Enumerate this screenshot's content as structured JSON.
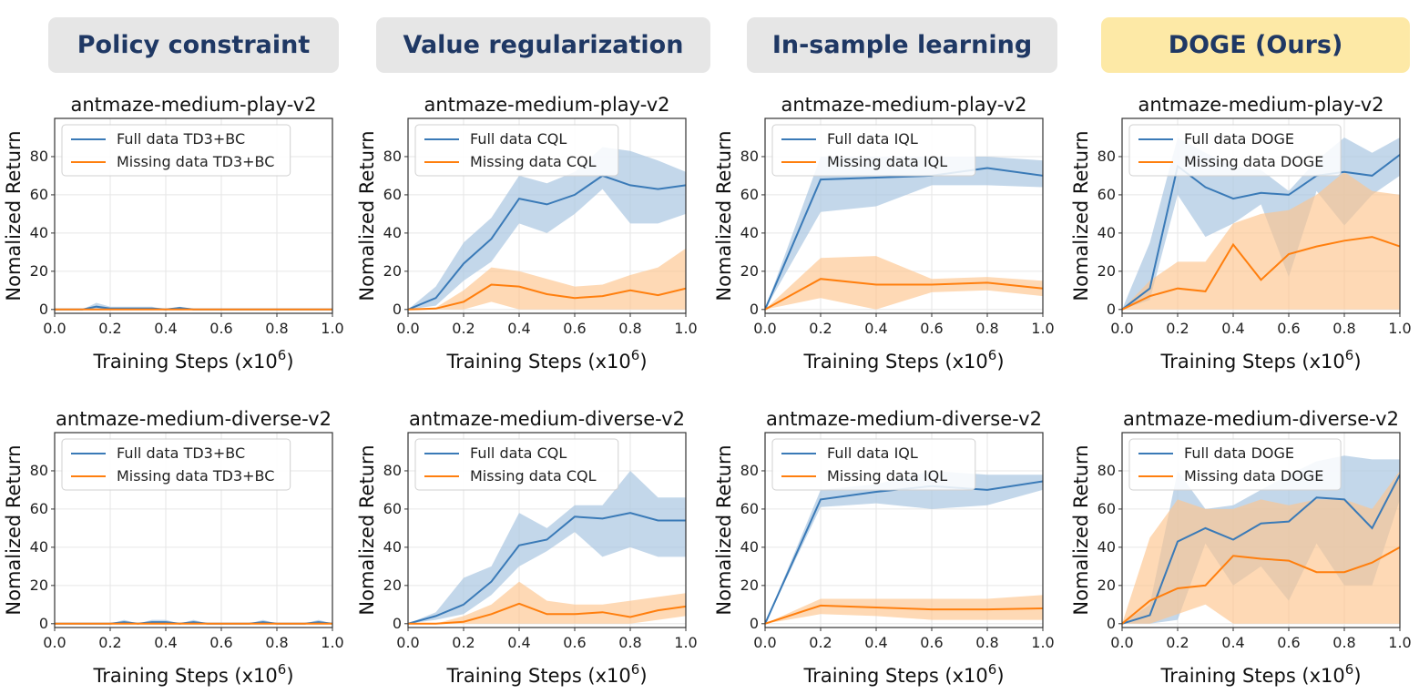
{
  "headers": [
    {
      "label": "Policy constraint",
      "bg": "#e6e6e6"
    },
    {
      "label": "Value regularization",
      "bg": "#e6e6e6"
    },
    {
      "label": "In-sample learning",
      "bg": "#e6e6e6"
    },
    {
      "label": "DOGE (Ours)",
      "bg": "#fde9a6"
    }
  ],
  "colors": {
    "full": "#3a7ab7",
    "full_band": "#a9c6e1",
    "missing": "#ff7f0e",
    "missing_band": "#fdc48e"
  },
  "chart_data": [
    {
      "type": "line",
      "title": "antmaze-medium-play-v2",
      "xlabel": "Training Steps (x10^6)",
      "ylabel": "Nomalized Return",
      "xlim": [
        0,
        1.0
      ],
      "ylim": [
        -2,
        100
      ],
      "xticks": [
        "0.0",
        "0.2",
        "0.4",
        "0.6",
        "0.8",
        "1.0"
      ],
      "yticks": [
        "0",
        "20",
        "40",
        "60",
        "80"
      ],
      "grid": true,
      "legend": "upper-left",
      "series": [
        {
          "name": "Full data TD3+BC",
          "x": [
            0,
            0.1,
            0.15,
            0.2,
            0.3,
            0.35,
            0.4,
            0.45,
            0.5,
            0.6,
            0.7,
            0.8,
            0.9,
            1.0
          ],
          "y": [
            0,
            0,
            1.5,
            0.5,
            0.5,
            0.5,
            0,
            0.8,
            0,
            0,
            0,
            0,
            0,
            0
          ],
          "lower": [
            0,
            0,
            0,
            0,
            0,
            0,
            0,
            0,
            0,
            0,
            0,
            0,
            0,
            0
          ],
          "upper": [
            0,
            0,
            3.5,
            1.5,
            1.5,
            1.5,
            0,
            1.5,
            0,
            0,
            0,
            0,
            0,
            0
          ]
        },
        {
          "name": "Missing data TD3+BC",
          "x": [
            0,
            0.1,
            0.2,
            0.3,
            0.4,
            0.5,
            0.6,
            0.7,
            0.8,
            0.9,
            1.0
          ],
          "y": [
            0,
            0,
            0,
            0,
            0,
            0,
            0,
            0,
            0,
            0,
            0
          ],
          "lower": [
            0,
            0,
            0,
            0,
            0,
            0,
            0,
            0,
            0,
            0,
            0
          ],
          "upper": [
            0,
            0,
            0,
            0,
            0,
            0,
            0,
            0,
            0,
            0,
            0
          ]
        }
      ]
    },
    {
      "type": "line",
      "title": "antmaze-medium-play-v2",
      "xlabel": "Training Steps (x10^6)",
      "ylabel": "Nomalized Return",
      "xlim": [
        0,
        1.0
      ],
      "ylim": [
        -2,
        100
      ],
      "xticks": [
        "0.0",
        "0.2",
        "0.4",
        "0.6",
        "0.8",
        "1.0"
      ],
      "yticks": [
        "0",
        "20",
        "40",
        "60",
        "80"
      ],
      "grid": true,
      "legend": "upper-left",
      "series": [
        {
          "name": "Full data CQL",
          "x": [
            0,
            0.1,
            0.2,
            0.3,
            0.4,
            0.5,
            0.6,
            0.7,
            0.8,
            0.9,
            1.0
          ],
          "y": [
            0,
            6,
            24,
            37,
            58,
            55,
            60,
            70,
            65,
            63,
            65
          ],
          "lower": [
            0,
            2,
            15,
            25,
            45,
            40,
            50,
            63,
            45,
            45,
            50
          ],
          "upper": [
            0,
            12,
            35,
            48,
            70,
            66,
            72,
            85,
            83,
            78,
            72
          ]
        },
        {
          "name": "Missing data CQL",
          "x": [
            0,
            0.1,
            0.2,
            0.3,
            0.4,
            0.5,
            0.6,
            0.7,
            0.8,
            0.9,
            1.0
          ],
          "y": [
            0,
            0.5,
            4,
            13,
            12,
            8,
            6,
            7,
            10,
            7.5,
            11
          ],
          "lower": [
            0,
            0,
            0,
            4,
            0,
            0,
            0,
            0,
            0,
            0,
            0
          ],
          "upper": [
            0,
            1,
            10,
            22,
            20,
            16,
            12,
            13,
            18,
            22,
            32
          ]
        }
      ]
    },
    {
      "type": "line",
      "title": "antmaze-medium-play-v2",
      "xlabel": "Training Steps (x10^6)",
      "ylabel": "Nomalized Return",
      "xlim": [
        0,
        1.0
      ],
      "ylim": [
        -2,
        100
      ],
      "xticks": [
        "0.0",
        "0.2",
        "0.4",
        "0.6",
        "0.8",
        "1.0"
      ],
      "yticks": [
        "0",
        "20",
        "40",
        "60",
        "80"
      ],
      "grid": true,
      "legend": "upper-left",
      "series": [
        {
          "name": "Full data IQL",
          "x": [
            0,
            0.2,
            0.4,
            0.6,
            0.8,
            1.0
          ],
          "y": [
            0,
            68,
            69,
            70,
            74,
            70
          ],
          "lower": [
            0,
            51,
            54,
            65,
            65,
            64
          ],
          "upper": [
            0,
            80,
            80,
            80,
            80,
            78
          ]
        },
        {
          "name": "Missing data IQL",
          "x": [
            0,
            0.2,
            0.4,
            0.6,
            0.8,
            1.0
          ],
          "y": [
            0,
            16,
            13,
            13,
            14,
            11
          ],
          "lower": [
            0,
            6,
            0,
            9,
            10,
            7
          ],
          "upper": [
            0,
            27,
            28,
            16,
            17,
            15
          ]
        }
      ]
    },
    {
      "type": "line",
      "title": "antmaze-medium-play-v2",
      "xlabel": "Training Steps (x10^6)",
      "ylabel": "Nomalized Return",
      "xlim": [
        0,
        1.0
      ],
      "ylim": [
        -2,
        100
      ],
      "xticks": [
        "0.0",
        "0.2",
        "0.4",
        "0.6",
        "0.8",
        "1.0"
      ],
      "yticks": [
        "0",
        "20",
        "40",
        "60",
        "80"
      ],
      "grid": true,
      "legend": "upper-left",
      "series": [
        {
          "name": "Full data DOGE",
          "x": [
            0,
            0.1,
            0.2,
            0.3,
            0.4,
            0.5,
            0.6,
            0.7,
            0.8,
            0.9,
            1.0
          ],
          "y": [
            0,
            11,
            75,
            64,
            58,
            61,
            60,
            70,
            72,
            70,
            81
          ],
          "lower": [
            0,
            5,
            60,
            38,
            45,
            55,
            17,
            62,
            44,
            60,
            70
          ],
          "upper": [
            0,
            35,
            90,
            82,
            75,
            73,
            62,
            78,
            90,
            82,
            90
          ]
        },
        {
          "name": "Missing data DOGE",
          "x": [
            0,
            0.1,
            0.2,
            0.3,
            0.4,
            0.5,
            0.6,
            0.7,
            0.8,
            0.9,
            1.0
          ],
          "y": [
            0,
            7,
            11,
            9.5,
            34,
            15.5,
            29,
            33,
            36,
            38,
            33
          ],
          "lower": [
            0,
            0,
            0,
            0,
            0,
            0,
            0,
            0,
            0,
            0,
            0
          ],
          "upper": [
            0,
            15,
            25,
            25,
            45,
            50,
            52,
            60,
            72,
            62,
            60
          ]
        }
      ]
    },
    {
      "type": "line",
      "title": "antmaze-medium-diverse-v2",
      "xlabel": "Training Steps (x10^6)",
      "ylabel": "Nomalized Return",
      "xlim": [
        0,
        1.0
      ],
      "ylim": [
        -2,
        100
      ],
      "xticks": [
        "0.0",
        "0.2",
        "0.4",
        "0.6",
        "0.8",
        "1.0"
      ],
      "yticks": [
        "0",
        "20",
        "40",
        "60",
        "80"
      ],
      "grid": true,
      "legend": "upper-left",
      "series": [
        {
          "name": "Full data TD3+BC",
          "x": [
            0,
            0.2,
            0.25,
            0.3,
            0.35,
            0.4,
            0.45,
            0.5,
            0.55,
            0.7,
            0.75,
            0.8,
            0.9,
            0.95,
            1.0
          ],
          "y": [
            0,
            0,
            0.8,
            0,
            0.8,
            0.8,
            0,
            0.8,
            0,
            0,
            0.8,
            0,
            0,
            0.8,
            0
          ],
          "lower": [
            0,
            0,
            0,
            0,
            0,
            0,
            0,
            0,
            0,
            0,
            0,
            0,
            0,
            0,
            0
          ],
          "upper": [
            0,
            0,
            2,
            0,
            2,
            2,
            0,
            2,
            0,
            0,
            2,
            0,
            0,
            2,
            0
          ]
        },
        {
          "name": "Missing data TD3+BC",
          "x": [
            0,
            0.1,
            0.2,
            0.3,
            0.4,
            0.5,
            0.6,
            0.7,
            0.8,
            0.9,
            1.0
          ],
          "y": [
            0,
            0,
            0,
            0,
            0,
            0,
            0,
            0,
            0,
            0,
            0
          ],
          "lower": [
            0,
            0,
            0,
            0,
            0,
            0,
            0,
            0,
            0,
            0,
            0
          ],
          "upper": [
            0,
            0,
            0,
            0,
            0,
            0,
            0,
            0,
            0,
            0,
            0
          ]
        }
      ]
    },
    {
      "type": "line",
      "title": "antmaze-medium-diverse-v2",
      "xlabel": "Training Steps (x10^6)",
      "ylabel": "Nomalized Return",
      "xlim": [
        0,
        1.0
      ],
      "ylim": [
        -2,
        100
      ],
      "xticks": [
        "0.0",
        "0.2",
        "0.4",
        "0.6",
        "0.8",
        "1.0"
      ],
      "yticks": [
        "0",
        "20",
        "40",
        "60",
        "80"
      ],
      "grid": true,
      "legend": "upper-left",
      "series": [
        {
          "name": "Full data CQL",
          "x": [
            0,
            0.1,
            0.2,
            0.3,
            0.4,
            0.5,
            0.6,
            0.7,
            0.8,
            0.9,
            1.0
          ],
          "y": [
            0,
            4,
            10,
            22,
            41,
            44,
            56,
            55,
            58,
            54,
            54
          ],
          "lower": [
            0,
            2,
            5,
            15,
            30,
            38,
            48,
            35,
            40,
            35,
            35
          ],
          "upper": [
            0,
            6,
            24,
            30,
            58,
            50,
            62,
            62,
            80,
            66,
            66
          ]
        },
        {
          "name": "Missing data CQL",
          "x": [
            0,
            0.1,
            0.2,
            0.3,
            0.4,
            0.5,
            0.6,
            0.7,
            0.8,
            0.9,
            1.0
          ],
          "y": [
            0,
            0,
            1,
            5,
            10.5,
            5,
            5,
            6,
            3.5,
            7,
            9
          ],
          "lower": [
            0,
            0,
            0,
            0,
            0,
            0,
            0,
            0,
            0,
            2,
            4
          ],
          "upper": [
            0,
            0,
            4,
            10,
            22,
            12,
            10,
            10,
            12,
            14,
            16
          ]
        }
      ]
    },
    {
      "type": "line",
      "title": "antmaze-medium-diverse-v2",
      "xlabel": "Training Steps (x10^6)",
      "ylabel": "Nomalized Return",
      "xlim": [
        0,
        1.0
      ],
      "ylim": [
        -2,
        100
      ],
      "xticks": [
        "0.0",
        "0.2",
        "0.4",
        "0.6",
        "0.8",
        "1.0"
      ],
      "yticks": [
        "0",
        "20",
        "40",
        "60",
        "80"
      ],
      "grid": true,
      "legend": "upper-left",
      "series": [
        {
          "name": "Full data IQL",
          "x": [
            0,
            0.2,
            0.4,
            0.6,
            0.8,
            1.0
          ],
          "y": [
            0,
            65,
            69,
            72,
            70,
            74.5
          ],
          "lower": [
            0,
            61,
            63,
            60,
            62,
            70
          ],
          "upper": [
            0,
            70,
            73,
            80,
            78,
            78
          ]
        },
        {
          "name": "Missing data IQL",
          "x": [
            0,
            0.2,
            0.4,
            0.6,
            0.8,
            1.0
          ],
          "y": [
            0,
            9.5,
            8.5,
            7.5,
            7.5,
            8
          ],
          "lower": [
            0,
            5,
            4,
            2,
            2,
            2
          ],
          "upper": [
            0,
            13,
            13,
            13,
            13,
            15
          ]
        }
      ]
    },
    {
      "type": "line",
      "title": "antmaze-medium-diverse-v2",
      "xlabel": "Training Steps (x10^6)",
      "ylabel": "Nomalized Return",
      "xlim": [
        0,
        1.0
      ],
      "ylim": [
        -2,
        100
      ],
      "xticks": [
        "0.0",
        "0.2",
        "0.4",
        "0.6",
        "0.8",
        "1.0"
      ],
      "yticks": [
        "0",
        "20",
        "40",
        "60",
        "80"
      ],
      "grid": true,
      "legend": "upper-left",
      "series": [
        {
          "name": "Full data DOGE",
          "x": [
            0,
            0.1,
            0.2,
            0.3,
            0.4,
            0.5,
            0.6,
            0.7,
            0.8,
            0.9,
            1.0
          ],
          "y": [
            0,
            4.5,
            43,
            50,
            44,
            52.5,
            53.5,
            66,
            65,
            50,
            78
          ],
          "lower": [
            0,
            0,
            2,
            42,
            20,
            30,
            12,
            42,
            20,
            20,
            65
          ],
          "upper": [
            0,
            10,
            80,
            60,
            62,
            70,
            78,
            85,
            88,
            86,
            86
          ]
        },
        {
          "name": "Missing data DOGE",
          "x": [
            0,
            0.1,
            0.2,
            0.3,
            0.4,
            0.5,
            0.6,
            0.7,
            0.8,
            0.9,
            1.0
          ],
          "y": [
            0,
            12,
            18.5,
            20,
            35.5,
            34,
            33,
            27,
            27,
            32,
            40
          ],
          "lower": [
            0,
            0,
            5,
            10,
            0,
            0,
            0,
            0,
            0,
            0,
            0
          ],
          "upper": [
            0,
            45,
            65,
            60,
            60,
            65,
            62,
            65,
            65,
            60,
            80
          ]
        }
      ]
    }
  ]
}
